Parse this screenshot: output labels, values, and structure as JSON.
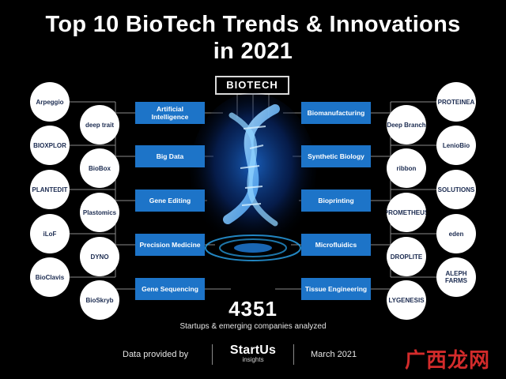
{
  "title_line1": "Top 10 BioTech Trends & Innovations",
  "title_line2": "in 2021",
  "center_label": "BIOTECH",
  "trends": [
    {
      "label": "Artificial Intelligence",
      "logos": [
        "Arpeggio",
        "deep trait"
      ]
    },
    {
      "label": "Big Data",
      "logos": [
        "BIOXPLOR",
        "BioBox"
      ]
    },
    {
      "label": "Gene Editing",
      "logos": [
        "PLANTEDIT",
        "Plastomics"
      ]
    },
    {
      "label": "Precision Medicine",
      "logos": [
        "iLoF",
        "DYNO"
      ]
    },
    {
      "label": "Gene Sequencing",
      "logos": [
        "BioClavis",
        "BioSkryb"
      ]
    },
    {
      "label": "Biomanufacturing",
      "logos": [
        "PROTEINEA",
        "Deep Branch"
      ]
    },
    {
      "label": "Synthetic Biology",
      "logos": [
        "LenioBio",
        "ribbon"
      ]
    },
    {
      "label": "Bioprinting",
      "logos": [
        "SOLUTIONS",
        "PROMETHEUS"
      ]
    },
    {
      "label": "Microfluidics",
      "logos": [
        "eden",
        "DROPLITE"
      ]
    },
    {
      "label": "Tissue Engineering",
      "logos": [
        "ALEPH FARMS",
        "LYGENESIS"
      ]
    }
  ],
  "stat_number": "4351",
  "stat_description": "Startups & emerging companies analyzed",
  "footer": {
    "data_provided": "Data provided by",
    "brand_name": "StartUs",
    "brand_sub": "insights",
    "date": "March 2021"
  },
  "watermark": "广西龙网",
  "colors": {
    "background": "#000000",
    "trend_box": "#1d74c8",
    "accent": "#2aa6f0",
    "logo_text": "#1b2b50"
  }
}
